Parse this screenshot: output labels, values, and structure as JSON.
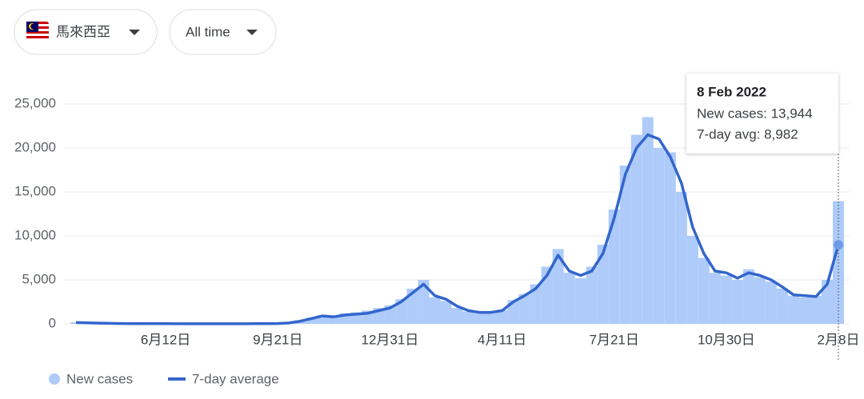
{
  "header": {
    "region": "馬來西亞",
    "range": "All time"
  },
  "tooltip": {
    "title": "8 Feb 2022",
    "lines": [
      "New cases: 13,944",
      "7-day avg: 8,982"
    ]
  },
  "chart_data": {
    "type": "bar-line",
    "categories": [
      null,
      null,
      null,
      null,
      null,
      null,
      null,
      null,
      "6月12日",
      null,
      null,
      null,
      null,
      null,
      null,
      null,
      null,
      null,
      "9月21日",
      null,
      null,
      null,
      null,
      null,
      null,
      null,
      null,
      null,
      "12月31日",
      null,
      null,
      null,
      null,
      null,
      null,
      null,
      null,
      null,
      "4月11日",
      null,
      null,
      null,
      null,
      null,
      null,
      null,
      null,
      null,
      "7月21日",
      null,
      null,
      null,
      null,
      null,
      null,
      null,
      null,
      null,
      "10月30日",
      null,
      null,
      null,
      null,
      null,
      null,
      null,
      null,
      null,
      "2月8日"
    ],
    "series": [
      {
        "name": "New cases",
        "color": "#aecbfa",
        "values": [
          170,
          110,
          70,
          40,
          30,
          25,
          20,
          15,
          10,
          8,
          10,
          12,
          10,
          8,
          12,
          15,
          20,
          25,
          60,
          150,
          400,
          700,
          1000,
          900,
          1200,
          1300,
          1500,
          1800,
          2100,
          2800,
          4000,
          5000,
          3000,
          2600,
          1800,
          1400,
          1200,
          1300,
          1600,
          2700,
          3400,
          4500,
          6500,
          8500,
          5800,
          5200,
          6500,
          9000,
          13000,
          18000,
          21500,
          23500,
          20000,
          19500,
          15000,
          10000,
          7500,
          5800,
          5500,
          5000,
          6200,
          5300,
          4800,
          4000,
          3200,
          3000,
          3200,
          5000,
          13944
        ]
      },
      {
        "name": "7-day average",
        "color": "#3366cc",
        "values": [
          150,
          120,
          80,
          50,
          40,
          30,
          20,
          20,
          15,
          10,
          10,
          10,
          10,
          10,
          10,
          10,
          15,
          20,
          40,
          100,
          300,
          600,
          900,
          800,
          1000,
          1100,
          1200,
          1500,
          1800,
          2500,
          3500,
          4500,
          3200,
          2800,
          2000,
          1500,
          1300,
          1300,
          1500,
          2500,
          3200,
          4000,
          5500,
          7800,
          6000,
          5500,
          6000,
          8000,
          12000,
          17000,
          20000,
          21500,
          21000,
          19000,
          16000,
          11000,
          8000,
          6000,
          5800,
          5200,
          5800,
          5500,
          5000,
          4200,
          3300,
          3200,
          3100,
          4500,
          8982
        ]
      }
    ],
    "ylim": [
      0,
      25000
    ],
    "yticks": [
      0,
      {
        "value": 5000,
        "label": "5,000"
      },
      {
        "value": 10000,
        "label": "10,000"
      },
      {
        "value": 15000,
        "label": "15,000"
      },
      {
        "value": 20000,
        "label": "20,000"
      },
      {
        "value": 25000,
        "label": "25,000"
      }
    ],
    "grid": true
  }
}
